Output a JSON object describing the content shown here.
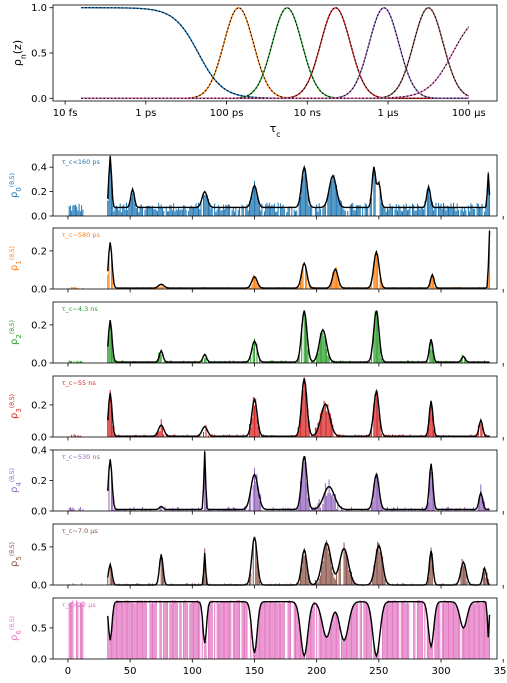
{
  "chart_data": [
    {
      "type": "line",
      "ylabel": "ρ_n(z)",
      "xlabel": "τ_c",
      "xscale": "log",
      "x_tick_labels": [
        "10 fs",
        "1 ps",
        "100 ps",
        "10 ns",
        "1 μs",
        "100 μs"
      ],
      "xlim_log10_seconds": [
        -14.3,
        -3.3
      ],
      "ylim": [
        -0.03,
        1.03
      ],
      "y_ticks": [
        0.0,
        0.5,
        1.0
      ],
      "grid": false,
      "series": [
        {
          "color": "#1f77b4",
          "shape": "step-down",
          "center_log10": -10.7,
          "width": 0.55
        },
        {
          "color": "#ff7f0e",
          "shape": "peak",
          "center_log10": -9.7,
          "width": 0.52
        },
        {
          "color": "#2ca02c",
          "shape": "peak",
          "center_log10": -8.5,
          "width": 0.52
        },
        {
          "color": "#d62728",
          "shape": "peak",
          "center_log10": -7.3,
          "width": 0.52
        },
        {
          "color": "#9467bd",
          "shape": "peak",
          "center_log10": -6.1,
          "width": 0.52
        },
        {
          "color": "#8c564b",
          "shape": "peak",
          "center_log10": -5.0,
          "width": 0.52
        },
        {
          "color": "#e377c2",
          "shape": "step-up",
          "center_log10": -4.4,
          "width": 0.55
        }
      ]
    },
    {
      "type": "bar",
      "shared_x_ticks": [
        0,
        50,
        100,
        150,
        200,
        250,
        300,
        350
      ],
      "xlim": [
        -12,
        345
      ],
      "n_positions": 340,
      "panels": [
        {
          "ylabel": "ρ_0^(θ,S)",
          "annotation": "τ_c<160 ps",
          "color": "#1f77b4",
          "ylim": [
            0,
            0.5
          ],
          "y_ticks": [
            0.0,
            0.2,
            0.4
          ],
          "baseline": 0.07,
          "noise": 0.04,
          "start": 1,
          "gap": [
            13,
            32
          ],
          "peaks": [
            [
              34,
              0.42,
              1.5
            ],
            [
              52,
              0.15,
              2
            ],
            [
              110,
              0.13,
              3
            ],
            [
              150,
              0.18,
              3
            ],
            [
              190,
              0.33,
              3
            ],
            [
              213,
              0.26,
              4
            ],
            [
              246,
              0.33,
              2
            ],
            [
              250,
              0.2,
              2
            ],
            [
              290,
              0.17,
              2
            ],
            [
              338,
              0.28,
              1
            ]
          ]
        },
        {
          "ylabel": "ρ_1^(θ,S)",
          "annotation": "τ_c~580 ps",
          "color": "#ff7f0e",
          "ylim": [
            0,
            0.32
          ],
          "y_ticks": [
            0.0,
            0.2
          ],
          "baseline": 0.005,
          "noise": 0.02,
          "start": 1,
          "gap": [
            13,
            32
          ],
          "peaks": [
            [
              34,
              0.24,
              2
            ],
            [
              75,
              0.02,
              3
            ],
            [
              150,
              0.06,
              3
            ],
            [
              190,
              0.13,
              3
            ],
            [
              215,
              0.1,
              3
            ],
            [
              248,
              0.19,
              3
            ],
            [
              293,
              0.07,
              2
            ],
            [
              339,
              0.3,
              1
            ]
          ]
        },
        {
          "ylabel": "ρ_2^(θ,S)",
          "annotation": "τ_c~4.3 ns",
          "color": "#2ca02c",
          "ylim": [
            0,
            0.32
          ],
          "y_ticks": [
            0.0,
            0.2
          ],
          "baseline": 0.005,
          "noise": 0.03,
          "start": 1,
          "gap": [
            13,
            32
          ],
          "peaks": [
            [
              34,
              0.22,
              2
            ],
            [
              75,
              0.06,
              2
            ],
            [
              110,
              0.04,
              2
            ],
            [
              150,
              0.11,
              3
            ],
            [
              190,
              0.27,
              3
            ],
            [
              205,
              0.17,
              4
            ],
            [
              248,
              0.27,
              3
            ],
            [
              292,
              0.12,
              2
            ],
            [
              318,
              0.03,
              2
            ]
          ]
        },
        {
          "ylabel": "ρ_3^(θ,S)",
          "annotation": "τ_c~55 ns",
          "color": "#d62728",
          "ylim": [
            0,
            0.38
          ],
          "y_ticks": [
            0.0,
            0.2
          ],
          "baseline": 0.005,
          "noise": 0.04,
          "start": 1,
          "gap": [
            13,
            32
          ],
          "peaks": [
            [
              34,
              0.27,
              2
            ],
            [
              75,
              0.07,
              3
            ],
            [
              110,
              0.06,
              3
            ],
            [
              150,
              0.23,
              3
            ],
            [
              190,
              0.36,
              3
            ],
            [
              207,
              0.2,
              5
            ],
            [
              248,
              0.28,
              3
            ],
            [
              292,
              0.22,
              2
            ],
            [
              332,
              0.1,
              2
            ]
          ]
        },
        {
          "ylabel": "ρ_4^(θ,S)",
          "annotation": "τ_c~530 ns",
          "color": "#9467bd",
          "ylim": [
            0,
            0.4
          ],
          "y_ticks": [
            0.0,
            0.2,
            0.4
          ],
          "baseline": 0.01,
          "noise": 0.06,
          "start": 1,
          "gap": [
            13,
            32
          ],
          "peaks": [
            [
              34,
              0.33,
              2
            ],
            [
              75,
              0.02,
              2
            ],
            [
              110,
              0.38,
              1
            ],
            [
              150,
              0.23,
              4
            ],
            [
              190,
              0.35,
              3
            ],
            [
              210,
              0.15,
              6
            ],
            [
              248,
              0.23,
              3
            ],
            [
              292,
              0.3,
              2
            ],
            [
              332,
              0.11,
              2
            ]
          ]
        },
        {
          "ylabel": "ρ_5^(θ,S)",
          "annotation": "τ_c~7.0 μs",
          "color": "#8c564b",
          "ylim": [
            0,
            0.8
          ],
          "y_ticks": [
            0.0,
            0.5
          ],
          "baseline": 0.0,
          "noise": 0.08,
          "start": 1,
          "gap": [
            13,
            32
          ],
          "peaks": [
            [
              34,
              0.27,
              2
            ],
            [
              75,
              0.4,
              2
            ],
            [
              110,
              0.42,
              1
            ],
            [
              150,
              0.63,
              3
            ],
            [
              190,
              0.46,
              3
            ],
            [
              208,
              0.55,
              5
            ],
            [
              222,
              0.48,
              5
            ],
            [
              250,
              0.52,
              4
            ],
            [
              292,
              0.45,
              2
            ],
            [
              318,
              0.3,
              3
            ],
            [
              335,
              0.22,
              2
            ]
          ]
        },
        {
          "ylabel": "ρ_6^(θ,S)",
          "annotation": "τ_c>22 μs",
          "color": "#e377c2",
          "ylim": [
            0,
            0.98
          ],
          "y_ticks": [
            0.0,
            0.5
          ],
          "baseline": 0.92,
          "noise": 0.03,
          "start": 1,
          "gap": [
            13,
            32
          ],
          "dips": [
            [
              34,
              0.3,
              2
            ],
            [
              110,
              0.25,
              2
            ],
            [
              150,
              0.1,
              3
            ],
            [
              190,
              0.05,
              4
            ],
            [
              208,
              0.35,
              5
            ],
            [
              222,
              0.3,
              5
            ],
            [
              248,
              0.05,
              4
            ],
            [
              292,
              0.2,
              3
            ],
            [
              318,
              0.5,
              4
            ],
            [
              338,
              0.35,
              1
            ]
          ]
        }
      ]
    }
  ]
}
